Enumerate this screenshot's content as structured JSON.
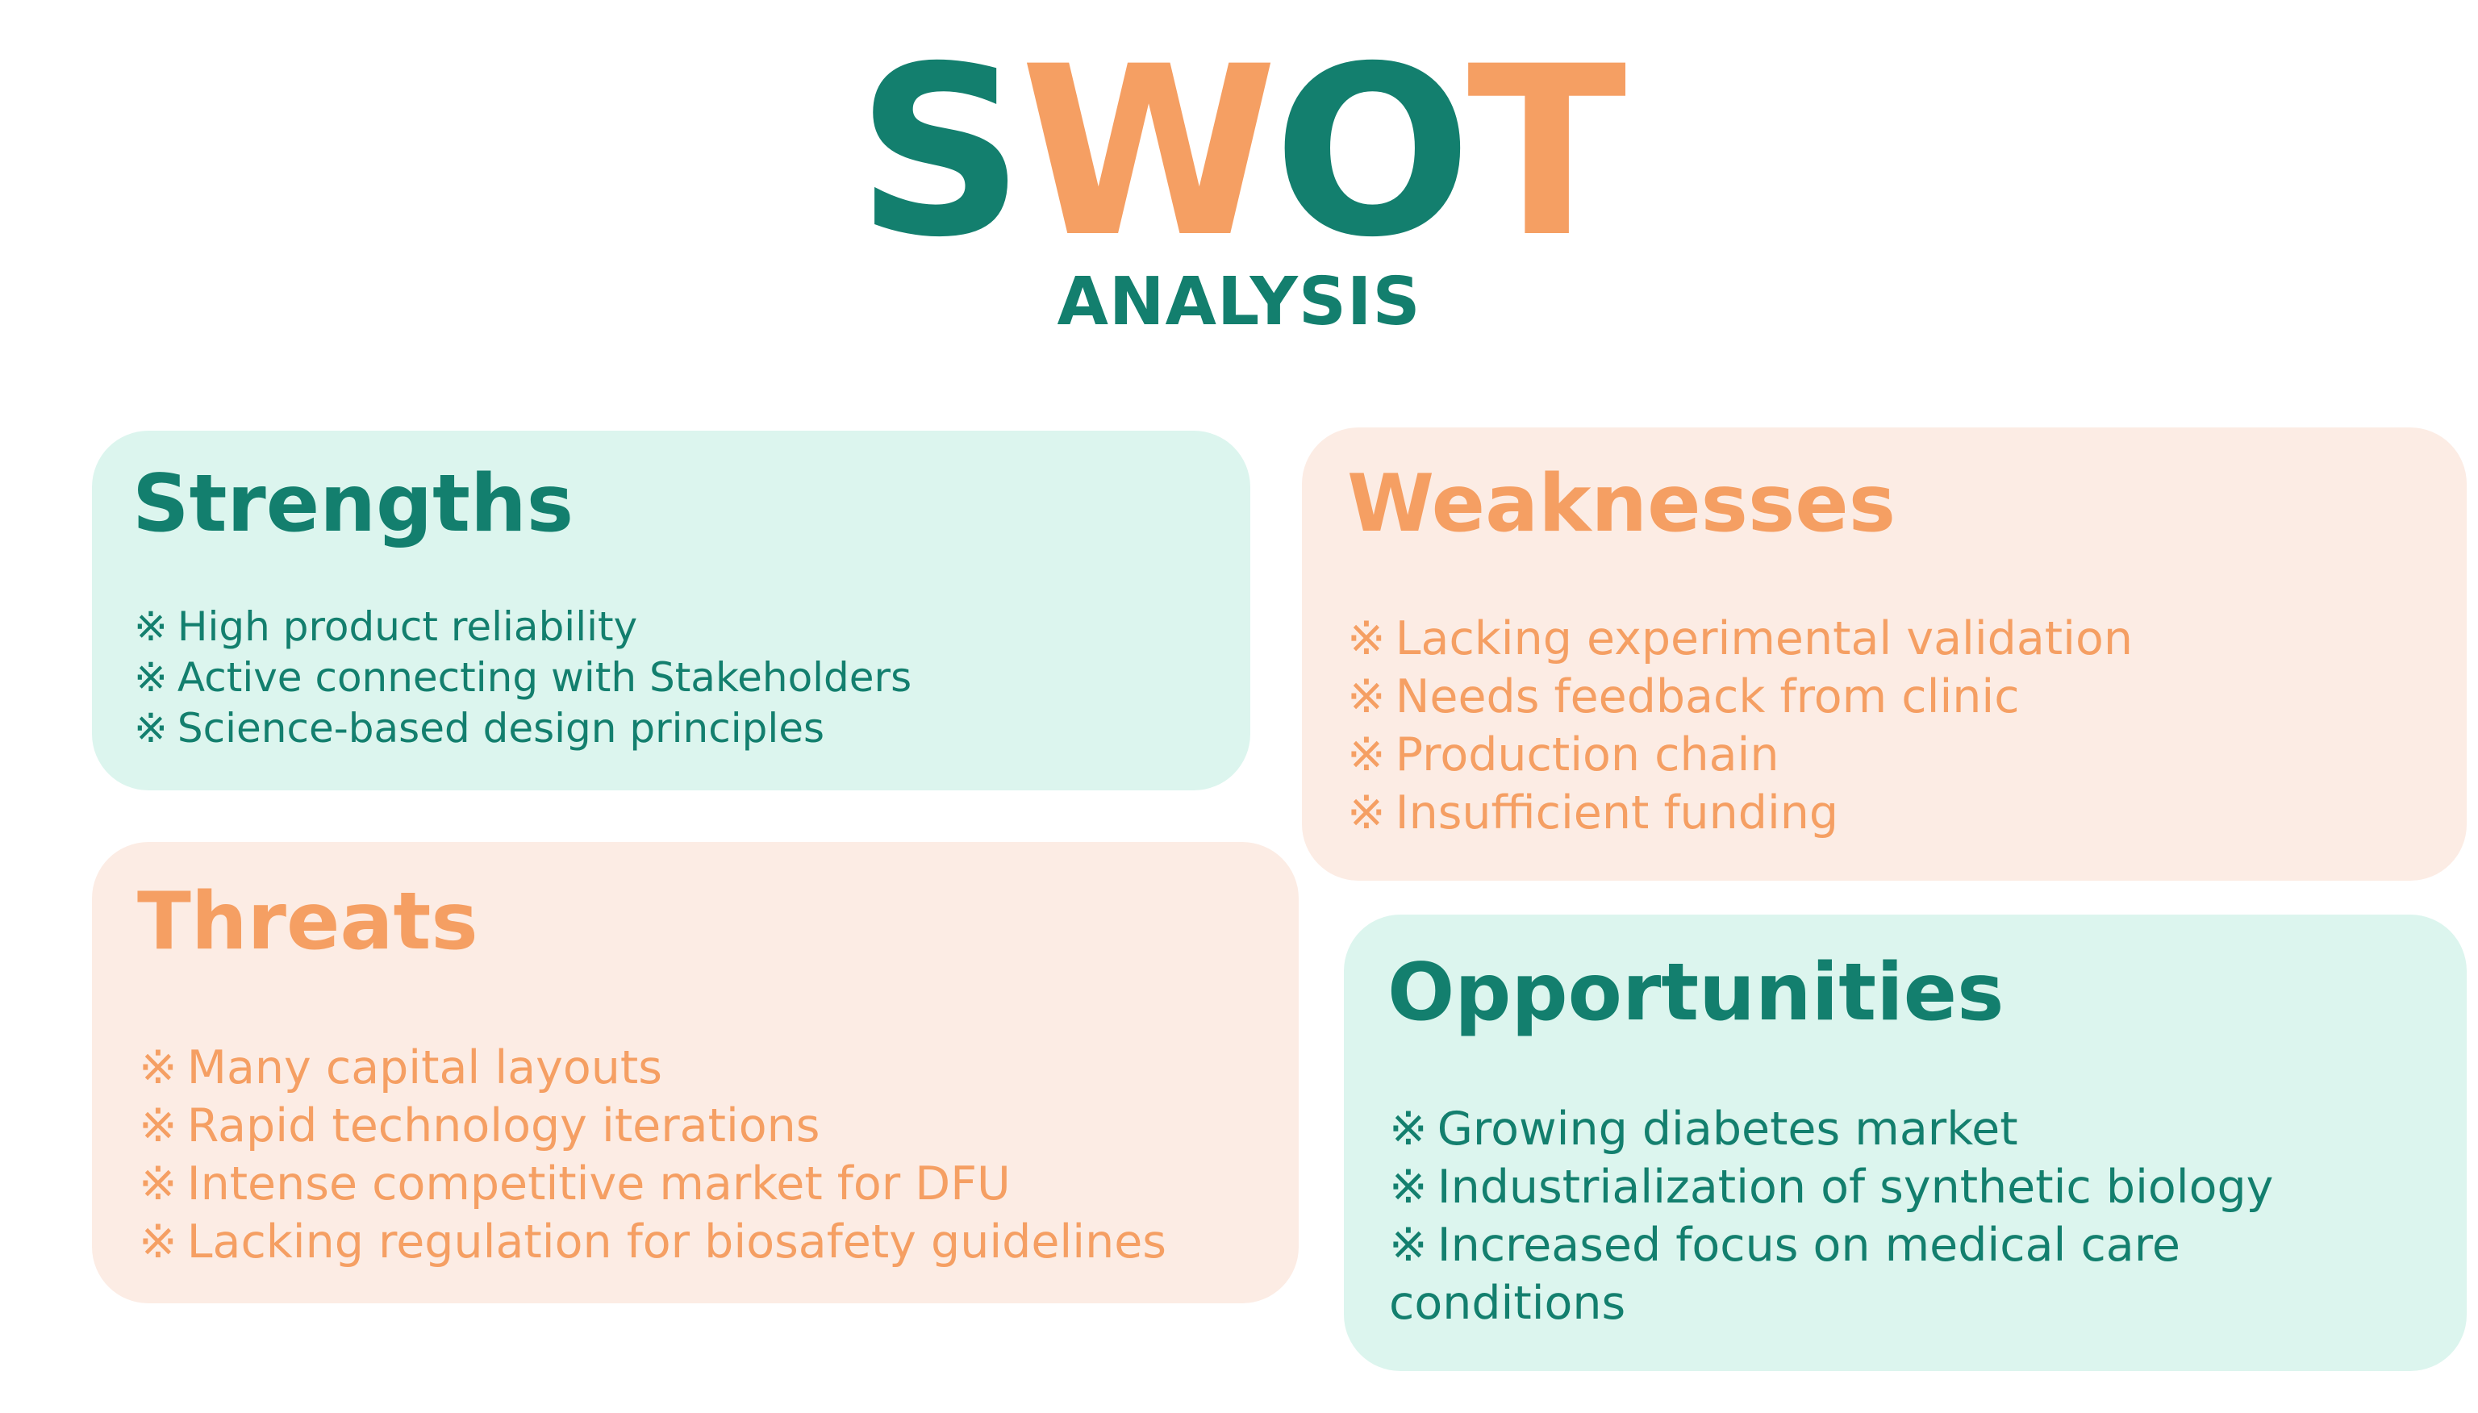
{
  "colors": {
    "teal": "#137f6e",
    "orange": "#f59f63",
    "teal_bg": "#dcf5ee",
    "orange_bg": "#fcece4"
  },
  "title": {
    "letters": [
      "S",
      "W",
      "O",
      "T"
    ],
    "letter_colors": [
      "teal",
      "orange",
      "teal",
      "orange"
    ],
    "subtitle": "ANALYSIS"
  },
  "strengths": {
    "heading": "Strengths",
    "bullet_mark": "※",
    "items": [
      "High product reliability",
      "Active connecting with Stakeholders",
      "Science-based design principles"
    ]
  },
  "weaknesses": {
    "heading": "Weaknesses",
    "bullet_mark": "※",
    "items": [
      "Lacking experimental validation",
      "Needs feedback from clinic",
      "Production chain",
      "Insufficient funding"
    ]
  },
  "threats": {
    "heading": "Threats",
    "bullet_mark": "※",
    "items": [
      "Many capital layouts",
      "Rapid technology iterations",
      "Intense competitive market for DFU",
      "Lacking regulation for biosafety guidelines"
    ]
  },
  "opportunities": {
    "heading": "Opportunities",
    "bullet_mark": "※",
    "items": [
      "Growing diabetes market",
      "Industrialization of synthetic biology",
      "Increased focus on medical care"
    ],
    "continuation": "conditions"
  }
}
